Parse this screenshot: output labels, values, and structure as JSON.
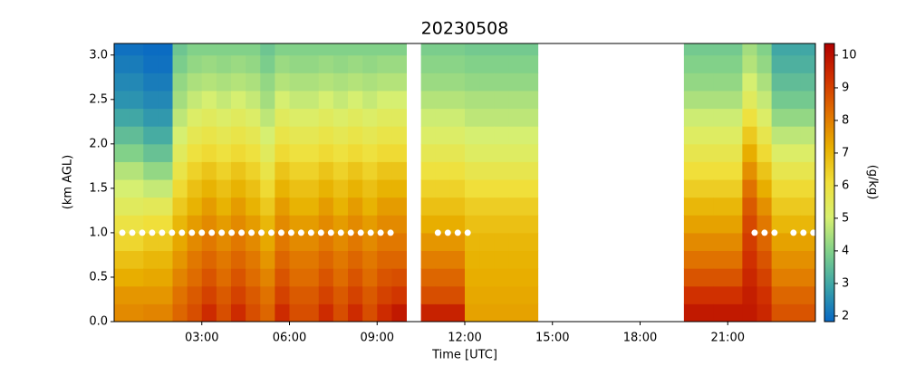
{
  "chart_data": {
    "type": "heatmap",
    "title": "20230508",
    "x_label": "Time [UTC]",
    "y_label": "(km AGL)",
    "colorbar_label": "(g/kg)",
    "x_edges": [
      0,
      0.5,
      1,
      1.5,
      2,
      2.5,
      3,
      3.5,
      4,
      4.5,
      5,
      5.5,
      6,
      6.5,
      7,
      7.5,
      8,
      8.5,
      9,
      9.5,
      10,
      10.5,
      11,
      11.5,
      12,
      12.5,
      13,
      13.5,
      14,
      14.5,
      15,
      15.5,
      16,
      16.5,
      17,
      17.5,
      18,
      18.5,
      19,
      19.5,
      20,
      20.5,
      21,
      21.5,
      22,
      22.5,
      23,
      23.5,
      24
    ],
    "y_edges": [
      0,
      0.2,
      0.4,
      0.6,
      0.8,
      1,
      1.2,
      1.4,
      1.6,
      1.8,
      2,
      2.2,
      2.4,
      2.6,
      2.8,
      3,
      3.2
    ],
    "z": [
      [
        7.8,
        7.6,
        7.2,
        6.8,
        6.3,
        5.9,
        5.4,
        5.0,
        4.6,
        4.0,
        3.5,
        3.0,
        2.6,
        2.4,
        2.2,
        2.0
      ],
      [
        7.8,
        7.6,
        7.2,
        6.8,
        6.3,
        5.9,
        5.4,
        5.0,
        4.6,
        4.0,
        3.5,
        3.0,
        2.6,
        2.4,
        2.2,
        2.0
      ],
      [
        7.9,
        7.6,
        7.3,
        7.0,
        6.6,
        6.1,
        5.5,
        4.8,
        4.2,
        3.6,
        3.1,
        2.7,
        2.4,
        2.2,
        2.0,
        1.9
      ],
      [
        7.9,
        7.6,
        7.3,
        7.0,
        6.6,
        6.1,
        5.5,
        4.8,
        4.2,
        3.6,
        3.1,
        2.7,
        2.4,
        2.2,
        2.0,
        1.9
      ],
      [
        8.4,
        8.2,
        7.9,
        7.6,
        7.3,
        7.0,
        6.6,
        6.2,
        5.8,
        5.4,
        5.0,
        4.7,
        4.4,
        4.2,
        3.9,
        3.7
      ],
      [
        8.8,
        8.6,
        8.3,
        8.1,
        7.8,
        7.5,
        7.1,
        6.8,
        6.4,
        6.0,
        5.6,
        5.2,
        4.8,
        4.5,
        4.2,
        4.0
      ],
      [
        9.4,
        9.0,
        8.7,
        8.4,
        8.1,
        7.8,
        7.5,
        7.1,
        6.7,
        6.2,
        5.8,
        5.4,
        5.0,
        4.6,
        4.3,
        4.0
      ],
      [
        8.8,
        8.6,
        8.3,
        8.1,
        7.8,
        7.5,
        7.1,
        6.8,
        6.4,
        6.0,
        5.6,
        5.2,
        4.8,
        4.5,
        4.2,
        4.0
      ],
      [
        9.4,
        9.0,
        8.7,
        8.4,
        8.1,
        7.8,
        7.5,
        7.1,
        6.7,
        6.2,
        5.8,
        5.4,
        5.0,
        4.6,
        4.3,
        4.0
      ],
      [
        8.8,
        8.6,
        8.3,
        8.1,
        7.8,
        7.5,
        7.1,
        6.8,
        6.4,
        6.0,
        5.6,
        5.2,
        4.8,
        4.5,
        4.2,
        4.0
      ],
      [
        8.4,
        8.2,
        7.9,
        7.6,
        7.3,
        7.0,
        6.6,
        6.2,
        5.8,
        5.4,
        5.0,
        4.7,
        4.4,
        4.2,
        3.9,
        3.7
      ],
      [
        9.4,
        9.0,
        8.7,
        8.4,
        8.1,
        7.8,
        7.5,
        7.1,
        6.7,
        6.2,
        5.8,
        5.4,
        5.0,
        4.6,
        4.3,
        4.0
      ],
      [
        8.8,
        8.6,
        8.3,
        8.1,
        7.8,
        7.5,
        7.1,
        6.8,
        6.4,
        6.0,
        5.6,
        5.2,
        4.8,
        4.5,
        4.2,
        4.0
      ],
      [
        8.8,
        8.6,
        8.3,
        8.1,
        7.8,
        7.5,
        7.1,
        6.8,
        6.4,
        6.0,
        5.6,
        5.2,
        4.8,
        4.5,
        4.2,
        4.0
      ],
      [
        9.4,
        9.0,
        8.7,
        8.4,
        8.1,
        7.8,
        7.5,
        7.1,
        6.7,
        6.2,
        5.8,
        5.4,
        5.0,
        4.6,
        4.3,
        4.0
      ],
      [
        8.8,
        8.6,
        8.3,
        8.1,
        7.8,
        7.5,
        7.1,
        6.8,
        6.4,
        6.0,
        5.6,
        5.2,
        4.8,
        4.5,
        4.2,
        4.0
      ],
      [
        9.4,
        9.0,
        8.7,
        8.4,
        8.1,
        7.8,
        7.5,
        7.1,
        6.7,
        6.2,
        5.8,
        5.4,
        5.0,
        4.6,
        4.3,
        4.0
      ],
      [
        8.8,
        8.6,
        8.3,
        8.1,
        7.8,
        7.5,
        7.1,
        6.8,
        6.4,
        6.0,
        5.6,
        5.2,
        4.8,
        4.5,
        4.2,
        4.0
      ],
      [
        9.4,
        9.0,
        8.7,
        8.4,
        8.1,
        7.8,
        7.5,
        7.1,
        6.7,
        6.2,
        5.8,
        5.4,
        5.0,
        4.6,
        4.3,
        4.0
      ],
      [
        9.8,
        9.2,
        8.8,
        8.4,
        8.1,
        7.8,
        7.5,
        7.1,
        6.7,
        6.2,
        5.8,
        5.4,
        5.0,
        4.6,
        4.3,
        4.0
      ],
      [
        null,
        null,
        null,
        null,
        null,
        null,
        null,
        null,
        null,
        null,
        null,
        null,
        null,
        null,
        null,
        null
      ],
      [
        9.6,
        8.8,
        8.4,
        8.0,
        7.6,
        7.2,
        6.8,
        6.4,
        6.0,
        5.6,
        5.2,
        4.9,
        4.6,
        4.3,
        4.1,
        3.9
      ],
      [
        9.6,
        8.8,
        8.4,
        8.0,
        7.6,
        7.2,
        6.8,
        6.4,
        6.0,
        5.6,
        5.2,
        4.9,
        4.6,
        4.3,
        4.1,
        3.9
      ],
      [
        9.6,
        8.8,
        8.4,
        8.0,
        7.6,
        7.2,
        6.8,
        6.4,
        6.0,
        5.6,
        5.2,
        4.9,
        4.6,
        4.3,
        4.1,
        3.9
      ],
      [
        7.4,
        7.3,
        7.2,
        7.1,
        7.0,
        6.8,
        6.5,
        6.1,
        5.7,
        5.3,
        5.0,
        4.7,
        4.5,
        4.2,
        4.0,
        3.8
      ],
      [
        7.4,
        7.3,
        7.2,
        7.1,
        7.0,
        6.8,
        6.5,
        6.1,
        5.7,
        5.3,
        5.0,
        4.7,
        4.5,
        4.2,
        4.0,
        3.8
      ],
      [
        7.4,
        7.3,
        7.2,
        7.1,
        7.0,
        6.8,
        6.5,
        6.1,
        5.7,
        5.3,
        5.0,
        4.7,
        4.5,
        4.2,
        4.0,
        3.8
      ],
      [
        7.4,
        7.3,
        7.2,
        7.1,
        7.0,
        6.8,
        6.5,
        6.1,
        5.7,
        5.3,
        5.0,
        4.7,
        4.5,
        4.2,
        4.0,
        3.8
      ],
      [
        7.4,
        7.3,
        7.2,
        7.1,
        7.0,
        6.8,
        6.5,
        6.1,
        5.7,
        5.3,
        5.0,
        4.7,
        4.5,
        4.2,
        4.0,
        3.8
      ],
      [
        null,
        null,
        null,
        null,
        null,
        null,
        null,
        null,
        null,
        null,
        null,
        null,
        null,
        null,
        null,
        null
      ],
      [
        null,
        null,
        null,
        null,
        null,
        null,
        null,
        null,
        null,
        null,
        null,
        null,
        null,
        null,
        null,
        null
      ],
      [
        null,
        null,
        null,
        null,
        null,
        null,
        null,
        null,
        null,
        null,
        null,
        null,
        null,
        null,
        null,
        null
      ],
      [
        null,
        null,
        null,
        null,
        null,
        null,
        null,
        null,
        null,
        null,
        null,
        null,
        null,
        null,
        null,
        null
      ],
      [
        null,
        null,
        null,
        null,
        null,
        null,
        null,
        null,
        null,
        null,
        null,
        null,
        null,
        null,
        null,
        null
      ],
      [
        null,
        null,
        null,
        null,
        null,
        null,
        null,
        null,
        null,
        null,
        null,
        null,
        null,
        null,
        null,
        null
      ],
      [
        null,
        null,
        null,
        null,
        null,
        null,
        null,
        null,
        null,
        null,
        null,
        null,
        null,
        null,
        null,
        null
      ],
      [
        null,
        null,
        null,
        null,
        null,
        null,
        null,
        null,
        null,
        null,
        null,
        null,
        null,
        null,
        null,
        null
      ],
      [
        null,
        null,
        null,
        null,
        null,
        null,
        null,
        null,
        null,
        null,
        null,
        null,
        null,
        null,
        null,
        null
      ],
      [
        null,
        null,
        null,
        null,
        null,
        null,
        null,
        null,
        null,
        null,
        null,
        null,
        null,
        null,
        null,
        null
      ],
      [
        9.8,
        9.3,
        8.7,
        8.2,
        7.8,
        7.4,
        7.0,
        6.5,
        6.1,
        5.7,
        5.3,
        4.9,
        4.5,
        4.2,
        4.0,
        3.8
      ],
      [
        9.8,
        9.3,
        8.7,
        8.2,
        7.8,
        7.4,
        7.0,
        6.5,
        6.1,
        5.7,
        5.3,
        4.9,
        4.5,
        4.2,
        4.0,
        3.8
      ],
      [
        9.8,
        9.3,
        8.7,
        8.2,
        7.8,
        7.4,
        7.0,
        6.5,
        6.1,
        5.7,
        5.3,
        4.9,
        4.5,
        4.2,
        4.0,
        3.8
      ],
      [
        9.8,
        9.3,
        8.7,
        8.2,
        7.8,
        7.4,
        7.0,
        6.5,
        6.1,
        5.7,
        5.3,
        4.9,
        4.5,
        4.2,
        4.0,
        3.8
      ],
      [
        9.8,
        9.7,
        9.5,
        9.3,
        9.1,
        8.9,
        8.6,
        8.2,
        7.7,
        7.2,
        6.6,
        6.0,
        5.4,
        5.0,
        4.6,
        4.4
      ],
      [
        9.5,
        9.3,
        9.0,
        8.7,
        8.4,
        8.1,
        7.7,
        7.2,
        6.7,
        6.2,
        5.7,
        5.2,
        4.8,
        4.5,
        4.2,
        4.0
      ],
      [
        8.7,
        8.4,
        8.0,
        7.7,
        7.4,
        7.0,
        6.6,
        6.2,
        5.7,
        5.2,
        4.7,
        4.2,
        3.8,
        3.5,
        3.2,
        3.0
      ],
      [
        8.7,
        8.4,
        8.0,
        7.7,
        7.4,
        7.0,
        6.6,
        6.2,
        5.7,
        5.2,
        4.7,
        4.2,
        3.8,
        3.5,
        3.2,
        3.0
      ],
      [
        8.7,
        8.4,
        8.0,
        7.7,
        7.4,
        7.0,
        6.6,
        6.2,
        5.7,
        5.2,
        4.7,
        4.2,
        3.8,
        3.5,
        3.2,
        3.0
      ]
    ],
    "markers": {
      "color": "#ffffff",
      "x": [
        0.28,
        0.62,
        0.96,
        1.3,
        1.64,
        1.98,
        2.32,
        2.66,
        3.0,
        3.34,
        3.68,
        4.02,
        4.36,
        4.7,
        5.04,
        5.38,
        5.72,
        6.06,
        6.4,
        6.74,
        7.08,
        7.42,
        7.76,
        8.1,
        8.44,
        8.78,
        9.12,
        9.46,
        11.08,
        11.42,
        11.76,
        12.1,
        21.92,
        22.26,
        22.6,
        23.25,
        23.59,
        23.93
      ],
      "y": [
        1,
        1,
        1,
        1,
        1,
        1,
        1,
        1,
        1,
        1,
        1,
        1,
        1,
        1,
        1,
        1,
        1,
        1,
        1,
        1,
        1,
        1,
        1,
        1,
        1,
        1,
        1,
        1,
        1,
        1,
        1,
        1,
        1,
        1,
        1,
        1,
        1,
        1
      ]
    },
    "xlim": [
      0,
      24
    ],
    "ylim": [
      0,
      3.13
    ],
    "xticks": [
      {
        "value": 3,
        "label": "03:00"
      },
      {
        "value": 6,
        "label": "06:00"
      },
      {
        "value": 9,
        "label": "09:00"
      },
      {
        "value": 12,
        "label": "12:00"
      },
      {
        "value": 15,
        "label": "15:00"
      },
      {
        "value": 18,
        "label": "18:00"
      },
      {
        "value": 21,
        "label": "21:00"
      }
    ],
    "yticks": [
      {
        "value": 0,
        "label": "0.0"
      },
      0.5,
      {
        "value": 1,
        "label": "1.0"
      },
      1.5,
      {
        "value": 2,
        "label": "2.0"
      },
      2.5,
      {
        "value": 3,
        "label": "3.0"
      }
    ],
    "vlim": [
      1.83,
      10.36
    ],
    "cticks": [
      2,
      3,
      4,
      5,
      6,
      7,
      8,
      9,
      10
    ],
    "colormap": [
      "#0868c4",
      "#3aa3a8",
      "#7fd08a",
      "#d8f070",
      "#f0df3a",
      "#e8b000",
      "#e07000",
      "#d03000",
      "#b00000"
    ]
  }
}
